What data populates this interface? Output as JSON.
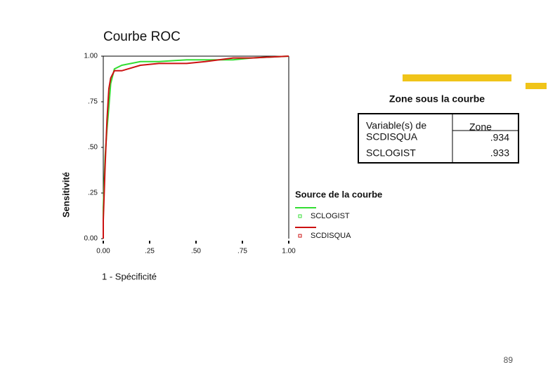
{
  "chart_data": {
    "type": "line",
    "title": "Courbe ROC",
    "x_label": "1 - Spécificité",
    "y_label": "Sensitivité",
    "legend_title": "Source de la courbe",
    "x": [
      0,
      0,
      0.01,
      0.02,
      0.03,
      0.04,
      0.06,
      0.1,
      0.2,
      0.3,
      0.45,
      0.55,
      0.7,
      0.8,
      1.0
    ],
    "series": [
      {
        "name": "SCLOGIST",
        "color": "#33dd33",
        "values": [
          0,
          0.17,
          0.45,
          0.6,
          0.72,
          0.85,
          0.93,
          0.95,
          0.97,
          0.97,
          0.98,
          0.98,
          0.98,
          0.99,
          1.0
        ]
      },
      {
        "name": "SCDISQUA",
        "color": "#cc1111",
        "values": [
          0,
          0.1,
          0.4,
          0.65,
          0.82,
          0.88,
          0.92,
          0.92,
          0.95,
          0.96,
          0.96,
          0.97,
          0.99,
          0.99,
          1.0
        ]
      }
    ],
    "xlim": [
      0,
      1
    ],
    "ylim": [
      0,
      1
    ],
    "xticks": [
      {
        "value": 0,
        "label": "0.00"
      },
      {
        "value": 0.25,
        "label": ".25"
      },
      {
        "value": 0.5,
        "label": ".50"
      },
      {
        "value": 0.75,
        "label": ".75"
      },
      {
        "value": 1,
        "label": "1.00"
      }
    ],
    "yticks": [
      {
        "value": 0,
        "label": "0.00"
      },
      {
        "value": 0.25,
        "label": ".25"
      },
      {
        "value": 0.5,
        "label": ".50"
      },
      {
        "value": 0.75,
        "label": ".75"
      },
      {
        "value": 1,
        "label": "1.00"
      }
    ],
    "grid": false
  },
  "table": {
    "title": "Zone sous la courbe",
    "columns": [
      "Variable(s) de",
      "Zone"
    ],
    "rows": [
      [
        "SCDISQUA",
        ".934"
      ],
      [
        "SCLOGIST",
        ".933"
      ]
    ]
  },
  "page_number": "89"
}
